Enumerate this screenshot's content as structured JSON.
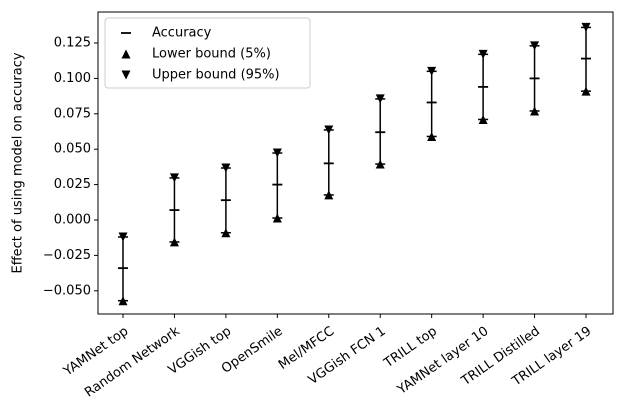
{
  "chart_data": {
    "type": "errorbar",
    "ylabel": "Effect of using model on accuracy",
    "categories": [
      "YAMNet top",
      "Random Network",
      "VGGish top",
      "OpenSmile",
      "Mel/MFCC",
      "VGGish FCN 1",
      "TRILL top",
      "YAMNet layer 10",
      "TRILL Distilled",
      "TRILL layer 19"
    ],
    "series": [
      {
        "name": "Accuracy",
        "color": "#000000",
        "marker": "hline",
        "values": [
          -0.034,
          0.007,
          0.014,
          0.025,
          0.04,
          0.062,
          0.083,
          0.094,
          0.1,
          0.114
        ]
      },
      {
        "name": "Lower bound (5%)",
        "color": "#000000",
        "marker": "triangle-up",
        "values": [
          -0.057,
          -0.0155,
          -0.009,
          0.0014,
          0.0177,
          0.0395,
          0.059,
          0.071,
          0.077,
          0.091
        ]
      },
      {
        "name": "Upper bound (95%)",
        "color": "#000000",
        "marker": "triangle-down",
        "values": [
          -0.012,
          0.0297,
          0.0367,
          0.0473,
          0.0636,
          0.0855,
          0.105,
          0.117,
          0.123,
          0.136
        ]
      }
    ],
    "ylim": [
      -0.0664,
      0.1469
    ],
    "yticks": [
      {
        "value": -0.05,
        "label": "−0.050"
      },
      {
        "value": -0.025,
        "label": "−0.025"
      },
      {
        "value": 0,
        "label": "0.000"
      },
      0.025,
      {
        "value": 0.05,
        "label": "0.050"
      },
      0.075,
      {
        "value": 0.1,
        "label": "0.100"
      },
      0.125
    ],
    "legend": "upper-left"
  }
}
